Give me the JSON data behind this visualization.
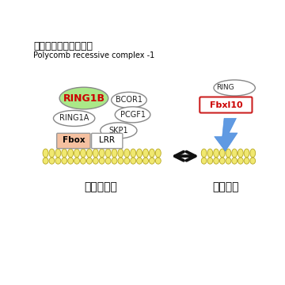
{
  "title_ja": "ム抑制複合体",
  "title_en": "mb recessive complex -1",
  "label_undiff": "未分化状態",
  "label_diff": "脂肪細胞",
  "ring1b_label": "RING1B",
  "ring1a_label": "RING1A",
  "bcor1_label": "BCOR1",
  "pcgf1_label": "PCGF1",
  "skp1_label": "SKP1",
  "fbox_label": "Fbox",
  "lrr_label": "LRR",
  "fbxl10_label": "Fbxl10",
  "ring_right_label": "RING",
  "bg_color": "#ffffff",
  "mem_fill": "#f0e870",
  "mem_edge": "#b8a820",
  "ring1b_fill": "#aae888",
  "ring1b_edge": "#888888",
  "ellipse_fill": "#ffffff",
  "ellipse_edge": "#888888",
  "fbox_fill": "#f5c0a0",
  "fbox_edge": "#999999",
  "lrr_fill": "#ffffff",
  "lrr_edge": "#999999",
  "fbxl10_fill": "#ffffff",
  "fbxl10_edge": "#cc2222",
  "ring_r_fill": "#ffffff",
  "ring_r_edge": "#888888",
  "ring1b_text_color": "#cc0000",
  "fbxl10_text_color": "#cc0000",
  "text_color": "#222222",
  "arrow_color": "#111111",
  "blue_color": "#4488dd"
}
